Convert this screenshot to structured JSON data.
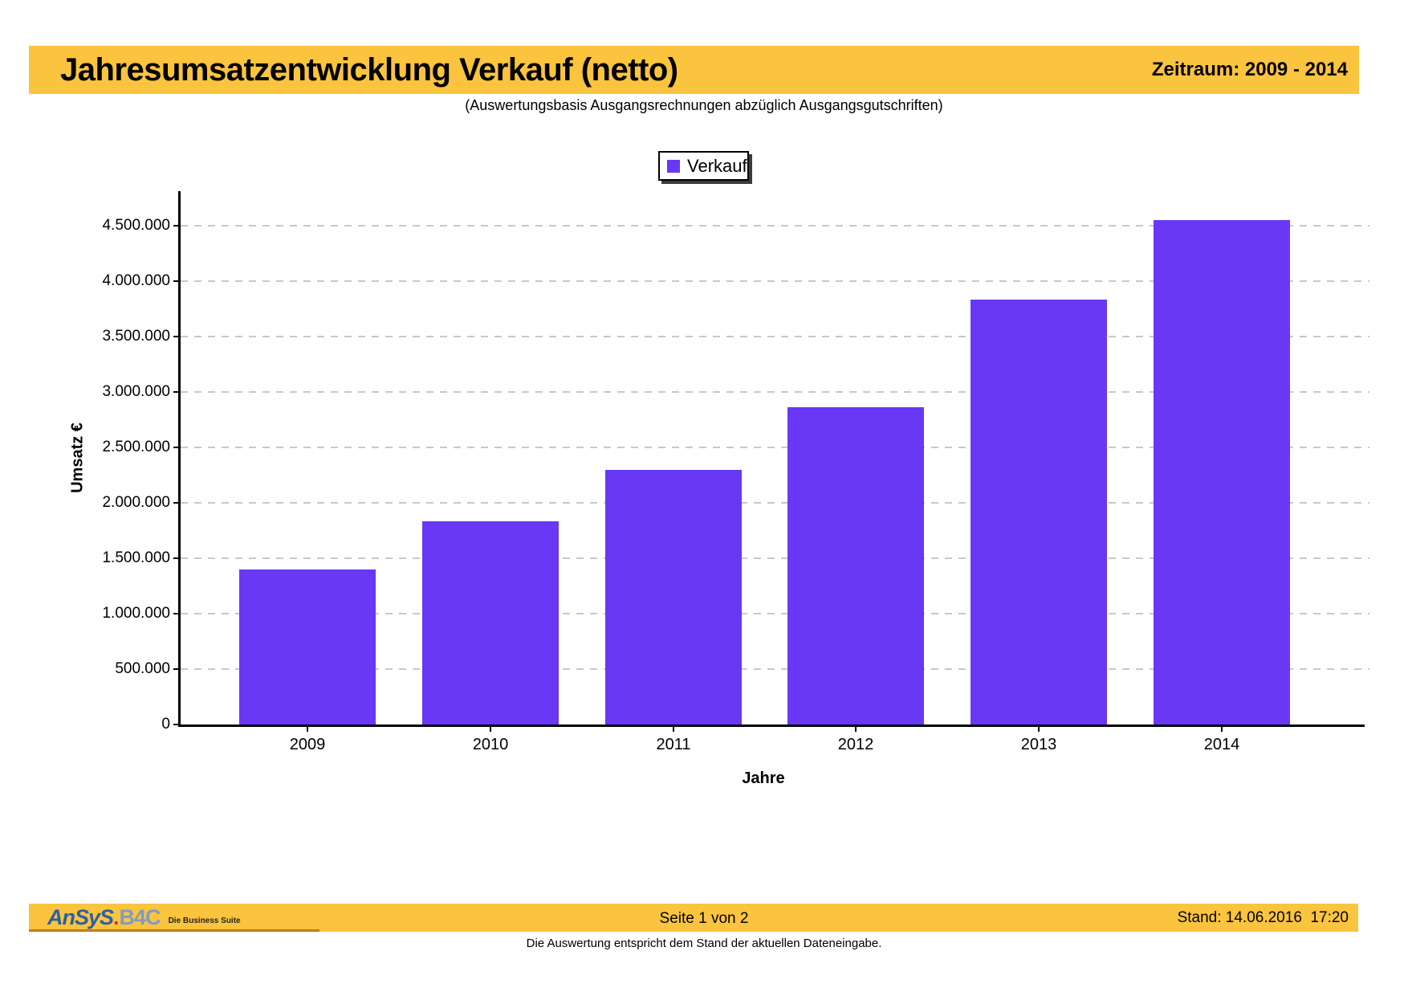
{
  "header": {
    "title": "Jahresumsatzentwicklung Verkauf (netto)",
    "period_label": "Zeitraum: 2009 - 2014"
  },
  "subtitle": "(Auswertungsbasis Ausgangsrechnungen abzüglich Ausgangsgutschriften)",
  "legend": {
    "label": "Verkauf"
  },
  "chart_data": {
    "type": "bar",
    "title": "Jahresumsatzentwicklung Verkauf (netto)",
    "subtitle": "(Auswertungsbasis Ausgangsrechnungen abzüglich Ausgangsgutschriften)",
    "categories": [
      "2009",
      "2010",
      "2011",
      "2012",
      "2013",
      "2014"
    ],
    "series": [
      {
        "name": "Verkauf",
        "values": [
          1400000,
          1830000,
          2300000,
          2860000,
          3830000,
          4550000
        ]
      }
    ],
    "xlabel": "Jahre",
    "ylabel": "Umsatz €",
    "ylim": [
      0,
      4810000
    ],
    "y_tick_step": 500000,
    "y_tick_labels": [
      "0",
      "500.000",
      "1.000.000",
      "1.500.000",
      "2.000.000",
      "2.500.000",
      "3.000.000",
      "3.500.000",
      "4.000.000",
      "4.500.000"
    ],
    "grid": "horizontal-dashed",
    "legend_position": "top-center",
    "bar_color": "#6838F4"
  },
  "footer": {
    "logo": {
      "brand_main": "AnSyS",
      "brand_dot": ".",
      "brand_suffix": "B4C",
      "tagline": "Die Business Suite"
    },
    "page_label": "Seite 1 von 2",
    "stand_label": "Stand: 14.06.2016  17:20"
  },
  "footnote": "Die Auswertung entspricht dem Stand der aktuellen Dateneingabe.",
  "colors": {
    "band": "#FBC43E",
    "bar": "#6838F4",
    "grid": "#C8C8C8",
    "logo_blue": "#2B5FA6",
    "logo_red": "#D93025",
    "logo_light_blue": "#7D9CC6",
    "logo_underline": "#BE7D1E"
  }
}
